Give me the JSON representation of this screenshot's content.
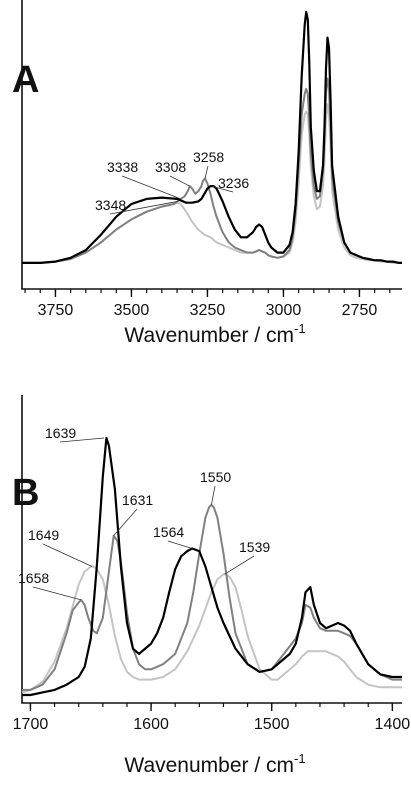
{
  "chart_data": [
    {
      "type": "line",
      "panel_label": "A",
      "xlabel": "Wavenumber / cm",
      "xlabel_sup": "-1",
      "xlim": [
        3860,
        2610
      ],
      "ylim": [
        0,
        1
      ],
      "x_ticks": [
        3750,
        3500,
        3250,
        3000,
        2750
      ],
      "y_ticks": [],
      "grid": false,
      "legend": "none",
      "series": [
        {
          "color": "#000000",
          "x": [
            3860,
            3800,
            3750,
            3700,
            3650,
            3600,
            3550,
            3500,
            3450,
            3400,
            3350,
            3320,
            3300,
            3280,
            3270,
            3260,
            3250,
            3240,
            3230,
            3220,
            3200,
            3180,
            3160,
            3140,
            3120,
            3100,
            3090,
            3080,
            3070,
            3060,
            3050,
            3040,
            3020,
            3000,
            2980,
            2970,
            2960,
            2950,
            2940,
            2930,
            2925,
            2920,
            2915,
            2910,
            2900,
            2890,
            2880,
            2870,
            2865,
            2860,
            2855,
            2850,
            2845,
            2840,
            2820,
            2800,
            2780,
            2760,
            2740,
            2720,
            2700,
            2680,
            2660,
            2640,
            2620,
            2610
          ],
          "y": [
            0.02,
            0.02,
            0.025,
            0.04,
            0.07,
            0.13,
            0.2,
            0.25,
            0.27,
            0.275,
            0.27,
            0.255,
            0.255,
            0.26,
            0.27,
            0.29,
            0.31,
            0.32,
            0.32,
            0.31,
            0.26,
            0.2,
            0.15,
            0.12,
            0.12,
            0.14,
            0.16,
            0.17,
            0.16,
            0.13,
            0.1,
            0.08,
            0.06,
            0.06,
            0.09,
            0.14,
            0.25,
            0.45,
            0.75,
            0.95,
            1.0,
            0.97,
            0.8,
            0.55,
            0.38,
            0.3,
            0.3,
            0.4,
            0.55,
            0.78,
            0.9,
            0.86,
            0.65,
            0.4,
            0.2,
            0.1,
            0.06,
            0.05,
            0.04,
            0.035,
            0.03,
            0.03,
            0.025,
            0.025,
            0.02,
            0.02
          ]
        },
        {
          "color": "#808080",
          "x": [
            3860,
            3800,
            3750,
            3700,
            3650,
            3600,
            3550,
            3500,
            3450,
            3400,
            3360,
            3348,
            3338,
            3325,
            3315,
            3308,
            3300,
            3290,
            3280,
            3270,
            3265,
            3258,
            3250,
            3240,
            3230,
            3220,
            3200,
            3180,
            3160,
            3140,
            3120,
            3100,
            3090,
            3080,
            3070,
            3060,
            3050,
            3040,
            3020,
            3000,
            2980,
            2970,
            2960,
            2950,
            2940,
            2930,
            2925,
            2920,
            2915,
            2910,
            2900,
            2890,
            2880,
            2870,
            2865,
            2860,
            2855,
            2850,
            2845,
            2840,
            2820,
            2800,
            2780,
            2760,
            2740,
            2720,
            2700,
            2680,
            2660,
            2640,
            2620,
            2610
          ],
          "y": [
            0.02,
            0.02,
            0.025,
            0.035,
            0.06,
            0.1,
            0.15,
            0.19,
            0.22,
            0.24,
            0.25,
            0.26,
            0.27,
            0.28,
            0.3,
            0.32,
            0.31,
            0.29,
            0.3,
            0.32,
            0.34,
            0.35,
            0.33,
            0.29,
            0.24,
            0.2,
            0.14,
            0.1,
            0.08,
            0.07,
            0.06,
            0.06,
            0.065,
            0.07,
            0.065,
            0.06,
            0.05,
            0.045,
            0.04,
            0.045,
            0.07,
            0.12,
            0.22,
            0.4,
            0.6,
            0.68,
            0.7,
            0.68,
            0.58,
            0.45,
            0.32,
            0.27,
            0.28,
            0.38,
            0.5,
            0.68,
            0.74,
            0.7,
            0.55,
            0.35,
            0.18,
            0.1,
            0.06,
            0.05,
            0.04,
            0.035,
            0.03,
            0.03,
            0.025,
            0.025,
            0.02,
            0.02
          ]
        },
        {
          "color": "#c4c4c4",
          "x": [
            3860,
            3800,
            3750,
            3700,
            3650,
            3600,
            3550,
            3500,
            3450,
            3400,
            3360,
            3348,
            3338,
            3320,
            3300,
            3280,
            3260,
            3240,
            3220,
            3200,
            3180,
            3160,
            3140,
            3120,
            3100,
            3090,
            3080,
            3070,
            3060,
            3050,
            3040,
            3020,
            3000,
            2980,
            2970,
            2960,
            2950,
            2940,
            2930,
            2925,
            2920,
            2915,
            2910,
            2900,
            2890,
            2880,
            2870,
            2865,
            2860,
            2855,
            2850,
            2845,
            2840,
            2820,
            2800,
            2780,
            2760,
            2740,
            2720,
            2700,
            2680,
            2660,
            2640,
            2620,
            2610
          ],
          "y": [
            0.02,
            0.02,
            0.025,
            0.035,
            0.06,
            0.1,
            0.15,
            0.19,
            0.22,
            0.24,
            0.25,
            0.255,
            0.25,
            0.22,
            0.18,
            0.15,
            0.13,
            0.12,
            0.1,
            0.09,
            0.08,
            0.07,
            0.06,
            0.06,
            0.06,
            0.065,
            0.07,
            0.065,
            0.06,
            0.05,
            0.045,
            0.04,
            0.045,
            0.06,
            0.1,
            0.18,
            0.33,
            0.52,
            0.6,
            0.61,
            0.6,
            0.52,
            0.4,
            0.28,
            0.23,
            0.24,
            0.32,
            0.42,
            0.58,
            0.64,
            0.6,
            0.48,
            0.3,
            0.15,
            0.08,
            0.05,
            0.04,
            0.035,
            0.03,
            0.03,
            0.025,
            0.025,
            0.02,
            0.02,
            0.02
          ]
        }
      ],
      "annotations": [
        {
          "text": "3348",
          "x": 3348,
          "y": 0.26
        },
        {
          "text": "3338",
          "x": 3338,
          "y": 0.27
        },
        {
          "text": "3308",
          "x": 3308,
          "y": 0.32
        },
        {
          "text": "3258",
          "x": 3258,
          "y": 0.35
        },
        {
          "text": "3236",
          "x": 3236,
          "y": 0.32
        }
      ]
    },
    {
      "type": "line",
      "panel_label": "B",
      "xlabel": "Wavenumber / cm",
      "xlabel_sup": "-1",
      "xlim": [
        1707,
        1392
      ],
      "ylim": [
        0,
        1
      ],
      "x_ticks": [
        1700,
        1600,
        1500,
        1400
      ],
      "y_ticks": [],
      "grid": false,
      "legend": "none",
      "series": [
        {
          "color": "#000000",
          "x": [
            1707,
            1700,
            1690,
            1680,
            1670,
            1660,
            1655,
            1650,
            1645,
            1640,
            1637,
            1635,
            1630,
            1625,
            1620,
            1615,
            1610,
            1600,
            1595,
            1590,
            1585,
            1580,
            1575,
            1570,
            1566,
            1560,
            1555,
            1550,
            1545,
            1540,
            1535,
            1530,
            1520,
            1510,
            1500,
            1495,
            1490,
            1485,
            1480,
            1475,
            1472,
            1468,
            1465,
            1460,
            1455,
            1450,
            1445,
            1440,
            1435,
            1430,
            1420,
            1410,
            1400,
            1392
          ],
          "y": [
            0.0,
            0.0,
            0.01,
            0.02,
            0.04,
            0.07,
            0.11,
            0.22,
            0.5,
            0.85,
            1.0,
            0.97,
            0.8,
            0.5,
            0.28,
            0.18,
            0.16,
            0.2,
            0.24,
            0.3,
            0.4,
            0.49,
            0.54,
            0.56,
            0.57,
            0.56,
            0.5,
            0.42,
            0.34,
            0.28,
            0.23,
            0.18,
            0.12,
            0.09,
            0.1,
            0.12,
            0.14,
            0.16,
            0.2,
            0.3,
            0.4,
            0.42,
            0.35,
            0.28,
            0.26,
            0.27,
            0.28,
            0.27,
            0.25,
            0.2,
            0.12,
            0.08,
            0.07,
            0.07
          ]
        },
        {
          "color": "#808080",
          "x": [
            1707,
            1700,
            1690,
            1680,
            1670,
            1665,
            1660,
            1658,
            1655,
            1652,
            1648,
            1645,
            1640,
            1635,
            1631,
            1628,
            1625,
            1620,
            1615,
            1610,
            1605,
            1600,
            1590,
            1580,
            1570,
            1565,
            1560,
            1555,
            1552,
            1550,
            1548,
            1545,
            1540,
            1535,
            1530,
            1520,
            1510,
            1500,
            1495,
            1490,
            1485,
            1480,
            1475,
            1472,
            1468,
            1465,
            1460,
            1455,
            1450,
            1445,
            1440,
            1435,
            1430,
            1420,
            1410,
            1400,
            1392
          ],
          "y": [
            0.02,
            0.02,
            0.04,
            0.1,
            0.24,
            0.33,
            0.36,
            0.37,
            0.35,
            0.3,
            0.25,
            0.24,
            0.3,
            0.48,
            0.62,
            0.6,
            0.52,
            0.32,
            0.18,
            0.12,
            0.1,
            0.1,
            0.12,
            0.16,
            0.28,
            0.4,
            0.55,
            0.69,
            0.73,
            0.74,
            0.73,
            0.69,
            0.55,
            0.38,
            0.24,
            0.12,
            0.09,
            0.1,
            0.13,
            0.16,
            0.19,
            0.22,
            0.28,
            0.35,
            0.34,
            0.3,
            0.26,
            0.25,
            0.25,
            0.25,
            0.24,
            0.23,
            0.2,
            0.12,
            0.08,
            0.06,
            0.06
          ]
        },
        {
          "color": "#c4c4c4",
          "x": [
            1707,
            1700,
            1690,
            1680,
            1670,
            1660,
            1655,
            1650,
            1648,
            1645,
            1640,
            1635,
            1630,
            1625,
            1620,
            1615,
            1610,
            1600,
            1590,
            1580,
            1570,
            1560,
            1550,
            1545,
            1540,
            1538,
            1535,
            1530,
            1525,
            1520,
            1510,
            1500,
            1495,
            1490,
            1485,
            1480,
            1475,
            1470,
            1465,
            1460,
            1455,
            1450,
            1445,
            1440,
            1435,
            1430,
            1420,
            1410,
            1400,
            1392
          ],
          "y": [
            0.01,
            0.02,
            0.05,
            0.13,
            0.26,
            0.43,
            0.48,
            0.5,
            0.5,
            0.49,
            0.45,
            0.35,
            0.23,
            0.14,
            0.09,
            0.07,
            0.06,
            0.06,
            0.07,
            0.1,
            0.17,
            0.27,
            0.4,
            0.45,
            0.47,
            0.47,
            0.46,
            0.42,
            0.33,
            0.23,
            0.1,
            0.06,
            0.06,
            0.08,
            0.1,
            0.12,
            0.15,
            0.17,
            0.17,
            0.17,
            0.17,
            0.16,
            0.15,
            0.13,
            0.1,
            0.07,
            0.04,
            0.03,
            0.03,
            0.03
          ]
        }
      ],
      "annotations": [
        {
          "text": "1658",
          "x": 1658,
          "y": 0.37
        },
        {
          "text": "1649",
          "x": 1649,
          "y": 0.5
        },
        {
          "text": "1639",
          "x": 1639,
          "y": 1.0
        },
        {
          "text": "1631",
          "x": 1631,
          "y": 0.62
        },
        {
          "text": "1564",
          "x": 1566,
          "y": 0.57
        },
        {
          "text": "1550",
          "x": 1550,
          "y": 0.74
        },
        {
          "text": "1539",
          "x": 1539,
          "y": 0.47
        }
      ]
    }
  ]
}
